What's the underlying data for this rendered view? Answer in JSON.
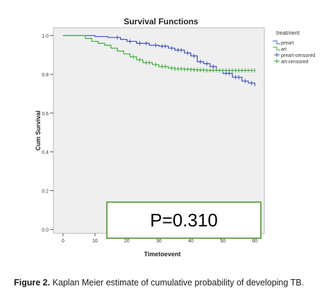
{
  "chart_data": {
    "type": "line",
    "title": "Survival Functions",
    "xlabel": "Timetoevent",
    "ylabel": "Cum Survival",
    "xlim": [
      -3,
      63
    ],
    "ylim": [
      -0.02,
      1.04
    ],
    "x_ticks": [
      0,
      10,
      20,
      30,
      40,
      50,
      60
    ],
    "y_ticks": [
      0.0,
      0.2,
      0.4,
      0.6,
      0.8,
      1.0
    ],
    "y_tick_labels": [
      "0.0",
      "0.2",
      "0.4",
      "0.6",
      "0.8",
      "1.0"
    ],
    "legend_title": "treatment",
    "legend_position": "right",
    "background": "#efefef",
    "series": [
      {
        "name": "preart",
        "color": "#3c4fb5",
        "x": [
          0,
          8,
          10,
          14,
          18,
          20,
          23,
          27,
          30,
          33,
          35,
          38,
          40,
          42,
          44,
          46,
          48,
          50,
          53,
          56,
          58,
          60
        ],
        "y": [
          1.0,
          1.0,
          0.995,
          0.99,
          0.98,
          0.97,
          0.96,
          0.95,
          0.945,
          0.935,
          0.925,
          0.91,
          0.895,
          0.865,
          0.855,
          0.84,
          0.82,
          0.805,
          0.785,
          0.765,
          0.755,
          0.74
        ],
        "censored_x": [
          17,
          21,
          24,
          26,
          29,
          31,
          32,
          34,
          36,
          37,
          39,
          41,
          43,
          45,
          47,
          49,
          51,
          52,
          54,
          55,
          57,
          59
        ]
      },
      {
        "name": "art",
        "color": "#3aae3a",
        "x": [
          0,
          5,
          7,
          9,
          11,
          13,
          15,
          17,
          19,
          21,
          23,
          25,
          28,
          30,
          33,
          35,
          38,
          40,
          42,
          45,
          48,
          50,
          60
        ],
        "y": [
          1.0,
          1.0,
          0.985,
          0.97,
          0.96,
          0.95,
          0.935,
          0.92,
          0.905,
          0.89,
          0.875,
          0.86,
          0.85,
          0.84,
          0.832,
          0.828,
          0.826,
          0.824,
          0.822,
          0.82,
          0.82,
          0.82,
          0.82
        ],
        "censored_x": [
          22,
          24,
          26,
          27,
          29,
          31,
          32,
          34,
          35,
          36,
          37,
          38,
          39,
          40,
          41,
          42,
          43,
          44,
          45,
          46,
          47,
          48,
          49,
          50,
          51,
          52,
          53,
          54,
          55,
          56,
          57,
          58,
          59,
          60
        ]
      }
    ],
    "legend_entries": [
      "preart",
      "art",
      "preart-censored",
      "art-censored"
    ]
  },
  "annotation": {
    "p_value": "P=0.310"
  },
  "caption": {
    "label": "Figure 2.",
    "text": " Kaplan Meier estimate of cumulative probability of developing TB."
  },
  "colors": {
    "pbox_border": "#6aa84f"
  }
}
